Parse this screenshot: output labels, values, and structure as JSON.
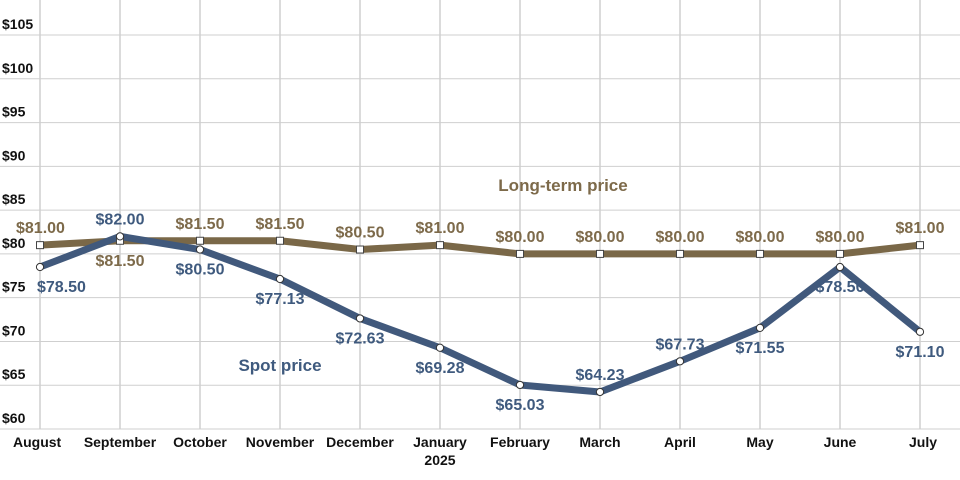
{
  "chart_data": {
    "type": "line",
    "title": "",
    "xlabel": "",
    "ylabel": "",
    "categories": [
      "August",
      "September",
      "October",
      "November",
      "December",
      "January",
      "February",
      "March",
      "April",
      "May",
      "June",
      "July"
    ],
    "category_sublabels": [
      "",
      "",
      "",
      "",
      "",
      "2025",
      "",
      "",
      "",
      "",
      "",
      ""
    ],
    "ylim": [
      60,
      109
    ],
    "yticks": [
      60,
      65,
      70,
      75,
      80,
      85,
      90,
      95,
      100,
      105
    ],
    "ytick_labels": [
      "$60",
      "$65",
      "$70",
      "$75",
      "$80",
      "$85",
      "$90",
      "$95",
      "$100",
      "$105"
    ],
    "grid": true,
    "series": [
      {
        "name": "Long-term price",
        "color": "#7a6848",
        "values": [
          81.0,
          81.5,
          81.5,
          81.5,
          80.5,
          81.0,
          80.0,
          80.0,
          80.0,
          80.0,
          80.0,
          81.0
        ],
        "labels": [
          "$81.00",
          "$81.50",
          "$81.50",
          "$81.50",
          "$80.50",
          "$81.00",
          "$80.00",
          "$80.00",
          "$80.00",
          "$80.00",
          "$80.00",
          "$81.00"
        ],
        "label_pos": [
          "above",
          "below",
          "above",
          "above",
          "above",
          "above",
          "above",
          "above",
          "above",
          "above",
          "above",
          "above"
        ]
      },
      {
        "name": "Spot price",
        "color": "#41597c",
        "values": [
          78.5,
          82.0,
          80.5,
          77.13,
          72.63,
          69.28,
          65.03,
          64.23,
          67.73,
          71.55,
          78.5,
          71.1
        ],
        "labels": [
          "$78.50",
          "$82.00",
          "$80.50",
          "$77.13",
          "$72.63",
          "$69.28",
          "$65.03",
          "$64.23",
          "$67.73",
          "$71.55",
          "$78.50",
          "$71.10"
        ],
        "label_pos": [
          "below",
          "above",
          "below",
          "below",
          "below",
          "below",
          "below",
          "above",
          "above",
          "below",
          "below",
          "below"
        ]
      }
    ]
  }
}
